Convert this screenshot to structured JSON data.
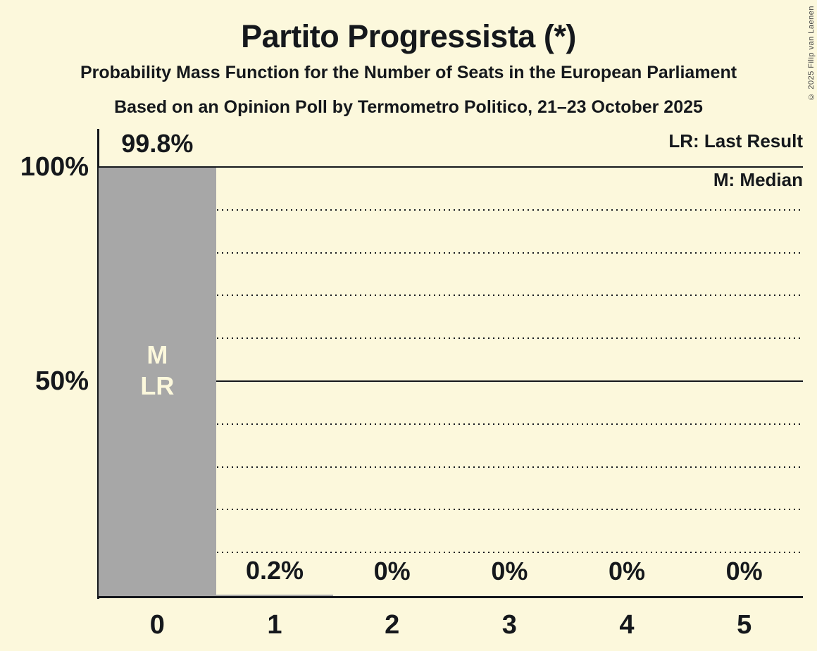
{
  "title": "Partito Progressista (*)",
  "subtitle1": "Probability Mass Function for the Number of Seats in the European Parliament",
  "subtitle2": "Based on an Opinion Poll by Termometro Politico, 21–23 October 2025",
  "copyright": "© 2025 Filip van Laenen",
  "legend": {
    "lr": "LR: Last Result",
    "m": "M: Median"
  },
  "colors": {
    "background": "#FCF8DC",
    "bar": "#A7A7A7",
    "text": "#15181C",
    "bar_label": "#FCF8DC"
  },
  "chart_data": {
    "type": "bar",
    "title": "Partito Progressista (*)",
    "categories": [
      "0",
      "1",
      "2",
      "3",
      "4",
      "5"
    ],
    "values": [
      99.8,
      0.2,
      0,
      0,
      0,
      0
    ],
    "value_labels": [
      "99.8%",
      "0.2%",
      "0%",
      "0%",
      "0%",
      "0%"
    ],
    "bar_annotations": [
      [
        "M",
        "LR"
      ],
      [],
      [],
      [],
      [],
      []
    ],
    "ylim": [
      0,
      100
    ],
    "yticks": [
      {
        "value": 100,
        "label": "100%"
      },
      {
        "value": 50,
        "label": "50%"
      }
    ],
    "gridlines_solid": [
      100,
      50
    ],
    "gridlines_dotted": [
      90,
      80,
      70,
      60,
      40,
      30,
      20,
      10
    ],
    "grid": true,
    "legend_position": "top-right",
    "legend_entries": [
      "LR: Last Result",
      "M: Median"
    ]
  }
}
